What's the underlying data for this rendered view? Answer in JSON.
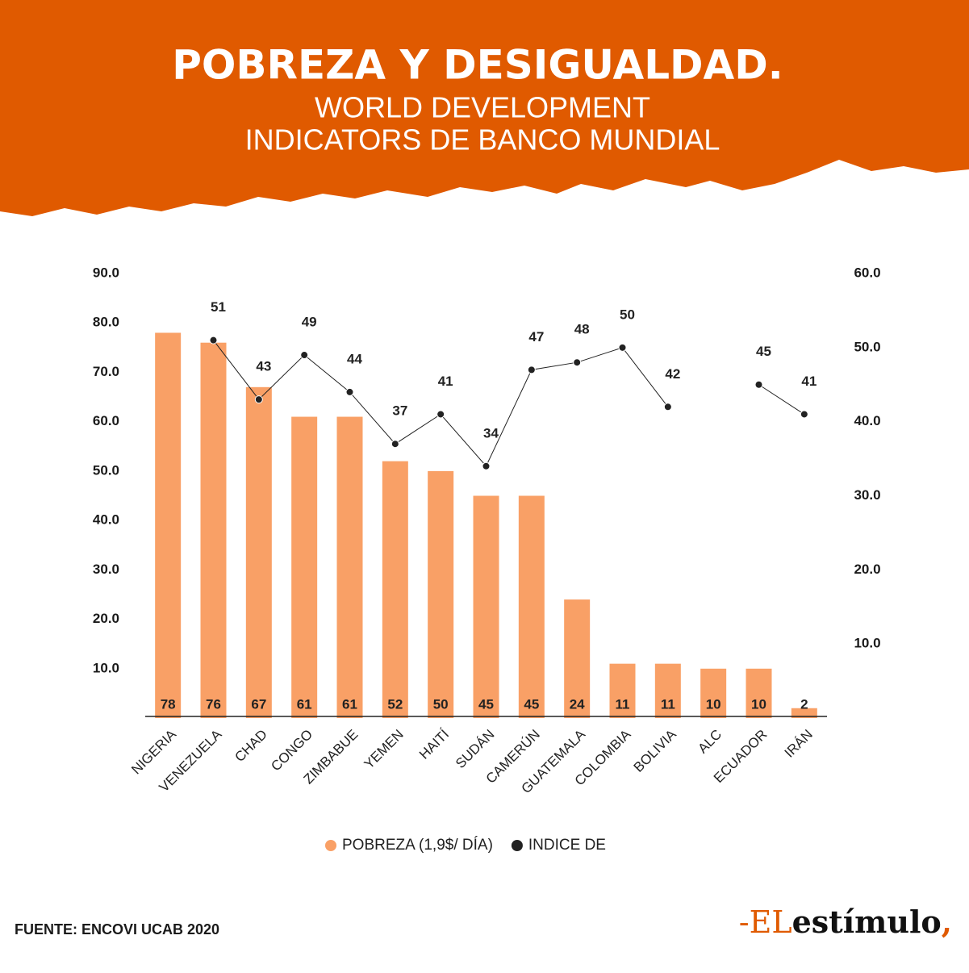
{
  "header": {
    "title": "POBREZA Y DESIGUALDAD.",
    "subtitle": [
      "WORLD  DEVELOPMENT",
      "INDICATORS DE BANCO MUNDIAL"
    ]
  },
  "chart_data": {
    "type": "bar",
    "categories": [
      "NIGERIA",
      "VENEZUELA",
      "CHAD",
      "CONGO",
      "ZIMBABUE",
      "YEMEN",
      "HAITÍ",
      "SUDÁN",
      "CAMERÚN",
      "GUATEMALA",
      "COLOMBIA",
      "BOLIVIA",
      "ALC",
      "ECUADOR",
      "IRÁN"
    ],
    "series": [
      {
        "name": "POBREZA (1,9$/ DÍA)",
        "type": "bar",
        "color": "#f9a066",
        "values": [
          78,
          76,
          67,
          61,
          61,
          52,
          50,
          45,
          45,
          24,
          11,
          11,
          10,
          10,
          2
        ]
      },
      {
        "name": "INDICE DE",
        "type": "line",
        "axis": "y2",
        "color": "#222222",
        "values": [
          null,
          51,
          43,
          49,
          44,
          37,
          41,
          34,
          47,
          48,
          50,
          42,
          null,
          45,
          41
        ]
      }
    ],
    "ylim": [
      0,
      90
    ],
    "yticks": [
      {
        "value": 10,
        "label": "10.0"
      },
      {
        "value": 20,
        "label": "20.0"
      },
      {
        "value": 30,
        "label": "30.0"
      },
      {
        "value": 40,
        "label": "40.0"
      },
      {
        "value": 50,
        "label": "50.0"
      },
      {
        "value": 60,
        "label": "60.0"
      },
      {
        "value": 70,
        "label": "70.0"
      },
      {
        "value": 80,
        "label": "80.0"
      },
      {
        "value": 90,
        "label": "90.0"
      }
    ],
    "y2lim": [
      0,
      60
    ],
    "y2ticks": [
      {
        "value": 10,
        "label": "10.0"
      },
      {
        "value": 20,
        "label": "20.0"
      },
      {
        "value": 30,
        "label": "30.0"
      },
      {
        "value": 40,
        "label": "40.0"
      },
      {
        "value": 50,
        "label": "50.0"
      },
      {
        "value": 60,
        "label": "60.0"
      }
    ],
    "legend": "bottom"
  },
  "footer": {
    "source": "FUENTE: ENCOVI UCAB 2020",
    "logo": {
      "prefix": "-EL",
      "name": "estímulo",
      "suffix": ","
    }
  }
}
